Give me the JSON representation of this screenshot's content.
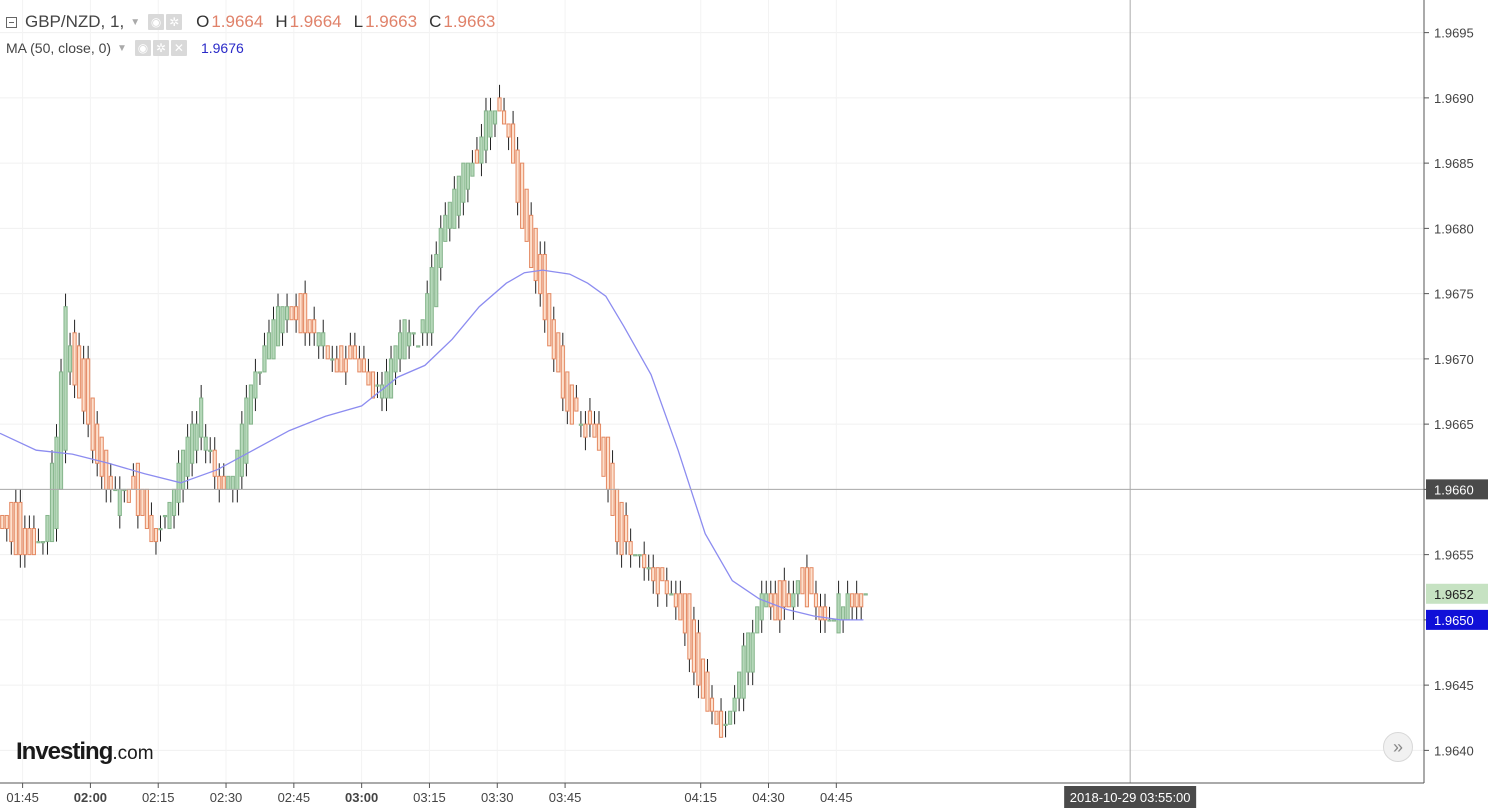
{
  "symbol": {
    "title": "GBP/NZD, 1,",
    "ohlc": [
      {
        "key": "O",
        "value": "1.9664"
      },
      {
        "key": "H",
        "value": "1.9664"
      },
      {
        "key": "L",
        "value": "1.9663"
      },
      {
        "key": "C",
        "value": "1.9663"
      }
    ]
  },
  "indicator": {
    "label": "MA (50, close, 0)",
    "value": "1.9676"
  },
  "branding": {
    "logo_main": "Investing",
    "logo_suffix": ".com"
  },
  "crosshair": {
    "price_label": "1.9660",
    "time_label": "2018-10-29 03:55:00",
    "price": 1.966,
    "minute": 250
  },
  "colors": {
    "up_fill": "#b5d8b9",
    "up_border": "#86b58c",
    "down_fill": "#fde0cd",
    "down_border": "#e48962",
    "ma_line": "#8c8cf0",
    "last_price_badge": "#c6e2c2",
    "ma_badge": "#1010d8"
  },
  "icons": [
    "collapse-icon",
    "eye-icon",
    "gear-icon",
    "close-icon",
    "chevron-down-icon",
    "double-chevron-right-icon"
  ],
  "chart_data": {
    "type": "candlestick",
    "x_unit": "minutes since 01:40",
    "xlim": [
      0,
      315
    ],
    "ylim": [
      1.96375,
      1.96975
    ],
    "y_ticks": [
      "1.9640",
      "1.9645",
      "1.9650",
      "1.9655",
      "1.9660",
      "1.9665",
      "1.9670",
      "1.9675",
      "1.9680",
      "1.9685",
      "1.9690",
      "1.9695"
    ],
    "x_ticks": [
      {
        "label": "01:45",
        "minute": 5,
        "bold": false
      },
      {
        "label": "02:00",
        "minute": 20,
        "bold": true
      },
      {
        "label": "02:15",
        "minute": 35,
        "bold": false
      },
      {
        "label": "02:30",
        "minute": 50,
        "bold": false
      },
      {
        "label": "02:45",
        "minute": 65,
        "bold": false
      },
      {
        "label": "03:00",
        "minute": 80,
        "bold": true
      },
      {
        "label": "03:15",
        "minute": 95,
        "bold": false
      },
      {
        "label": "03:30",
        "minute": 110,
        "bold": false
      },
      {
        "label": "03:45",
        "minute": 125,
        "bold": false
      },
      {
        "label": "04:15",
        "minute": 155,
        "bold": false
      },
      {
        "label": "04:30",
        "minute": 170,
        "bold": false
      },
      {
        "label": "04:45",
        "minute": 185,
        "bold": false
      }
    ],
    "last_price_label": "1.9652",
    "ma_price_label": "1.9650",
    "anchors": [
      [
        0,
        1.9658,
        1.9657
      ],
      [
        3,
        1.9659,
        1.9656
      ],
      [
        6,
        1.9657,
        1.9655
      ],
      [
        9,
        1.9656,
        1.9656
      ],
      [
        12,
        1.9657,
        1.9664
      ],
      [
        14,
        1.9664,
        1.9674
      ],
      [
        16,
        1.9672,
        1.9668
      ],
      [
        19,
        1.9669,
        1.9665
      ],
      [
        22,
        1.9664,
        1.966
      ],
      [
        26,
        1.9659,
        1.966
      ],
      [
        30,
        1.9662,
        1.9659
      ],
      [
        34,
        1.9657,
        1.9656
      ],
      [
        37,
        1.9658,
        1.9659
      ],
      [
        40,
        1.966,
        1.9663
      ],
      [
        44,
        1.9664,
        1.9666
      ],
      [
        48,
        1.9662,
        1.966
      ],
      [
        51,
        1.9659,
        1.9661
      ],
      [
        54,
        1.9662,
        1.9667
      ],
      [
        57,
        1.9669,
        1.967
      ],
      [
        61,
        1.9671,
        1.9674
      ],
      [
        66,
        1.9675,
        1.9672
      ],
      [
        70,
        1.9671,
        1.9672
      ],
      [
        74,
        1.967,
        1.9669
      ],
      [
        78,
        1.9671,
        1.967
      ],
      [
        82,
        1.9669,
        1.9667
      ],
      [
        85,
        1.9667,
        1.9669
      ],
      [
        89,
        1.9671,
        1.9673
      ],
      [
        92,
        1.9672,
        1.9671
      ],
      [
        95,
        1.9672,
        1.9677
      ],
      [
        98,
        1.9679,
        1.9681
      ],
      [
        102,
        1.9682,
        1.9685
      ],
      [
        105,
        1.9685,
        1.9685
      ],
      [
        107,
        1.9686,
        1.9689
      ],
      [
        110,
        1.969,
        1.9689
      ],
      [
        113,
        1.9688,
        1.9685
      ],
      [
        116,
        1.9683,
        1.9678
      ],
      [
        119,
        1.9679,
        1.9675
      ],
      [
        122,
        1.9673,
        1.967
      ],
      [
        125,
        1.9669,
        1.9666
      ],
      [
        128,
        1.9665,
        1.9665
      ],
      [
        131,
        1.9666,
        1.9664
      ],
      [
        134,
        1.9664,
        1.966
      ],
      [
        137,
        1.9659,
        1.9655
      ],
      [
        140,
        1.9655,
        1.9655
      ],
      [
        144,
        1.9654,
        1.9653
      ],
      [
        148,
        1.9652,
        1.9652
      ],
      [
        152,
        1.9652,
        1.9648
      ],
      [
        155,
        1.9647,
        1.9644
      ],
      [
        158,
        1.9643,
        1.9642
      ],
      [
        161,
        1.9642,
        1.9642
      ],
      [
        164,
        1.9644,
        1.9647
      ],
      [
        168,
        1.965,
        1.9652
      ],
      [
        172,
        1.9653,
        1.965
      ],
      [
        175,
        1.9651,
        1.9652
      ],
      [
        178,
        1.9654,
        1.9652
      ],
      [
        182,
        1.9651,
        1.965
      ],
      [
        185,
        1.9649,
        1.9651
      ],
      [
        189,
        1.9652,
        1.9651
      ],
      [
        191,
        1.9652,
        1.9652
      ]
    ],
    "ma_line": [
      [
        0,
        1.96643
      ],
      [
        8,
        1.9663
      ],
      [
        16,
        1.96627
      ],
      [
        24,
        1.9662
      ],
      [
        32,
        1.96612
      ],
      [
        40,
        1.96605
      ],
      [
        48,
        1.96615
      ],
      [
        56,
        1.9663
      ],
      [
        64,
        1.96645
      ],
      [
        72,
        1.96656
      ],
      [
        80,
        1.96664
      ],
      [
        88,
        1.96686
      ],
      [
        94,
        1.96695
      ],
      [
        100,
        1.96715
      ],
      [
        106,
        1.9674
      ],
      [
        112,
        1.96758
      ],
      [
        116,
        1.96766
      ],
      [
        120,
        1.96768
      ],
      [
        126,
        1.96765
      ],
      [
        130,
        1.96758
      ],
      [
        134,
        1.96748
      ],
      [
        138,
        1.96725
      ],
      [
        144,
        1.96688
      ],
      [
        150,
        1.9663
      ],
      [
        156,
        1.96566
      ],
      [
        162,
        1.9653
      ],
      [
        168,
        1.96516
      ],
      [
        174,
        1.96508
      ],
      [
        180,
        1.96503
      ],
      [
        186,
        1.965
      ],
      [
        191,
        1.965
      ]
    ]
  }
}
